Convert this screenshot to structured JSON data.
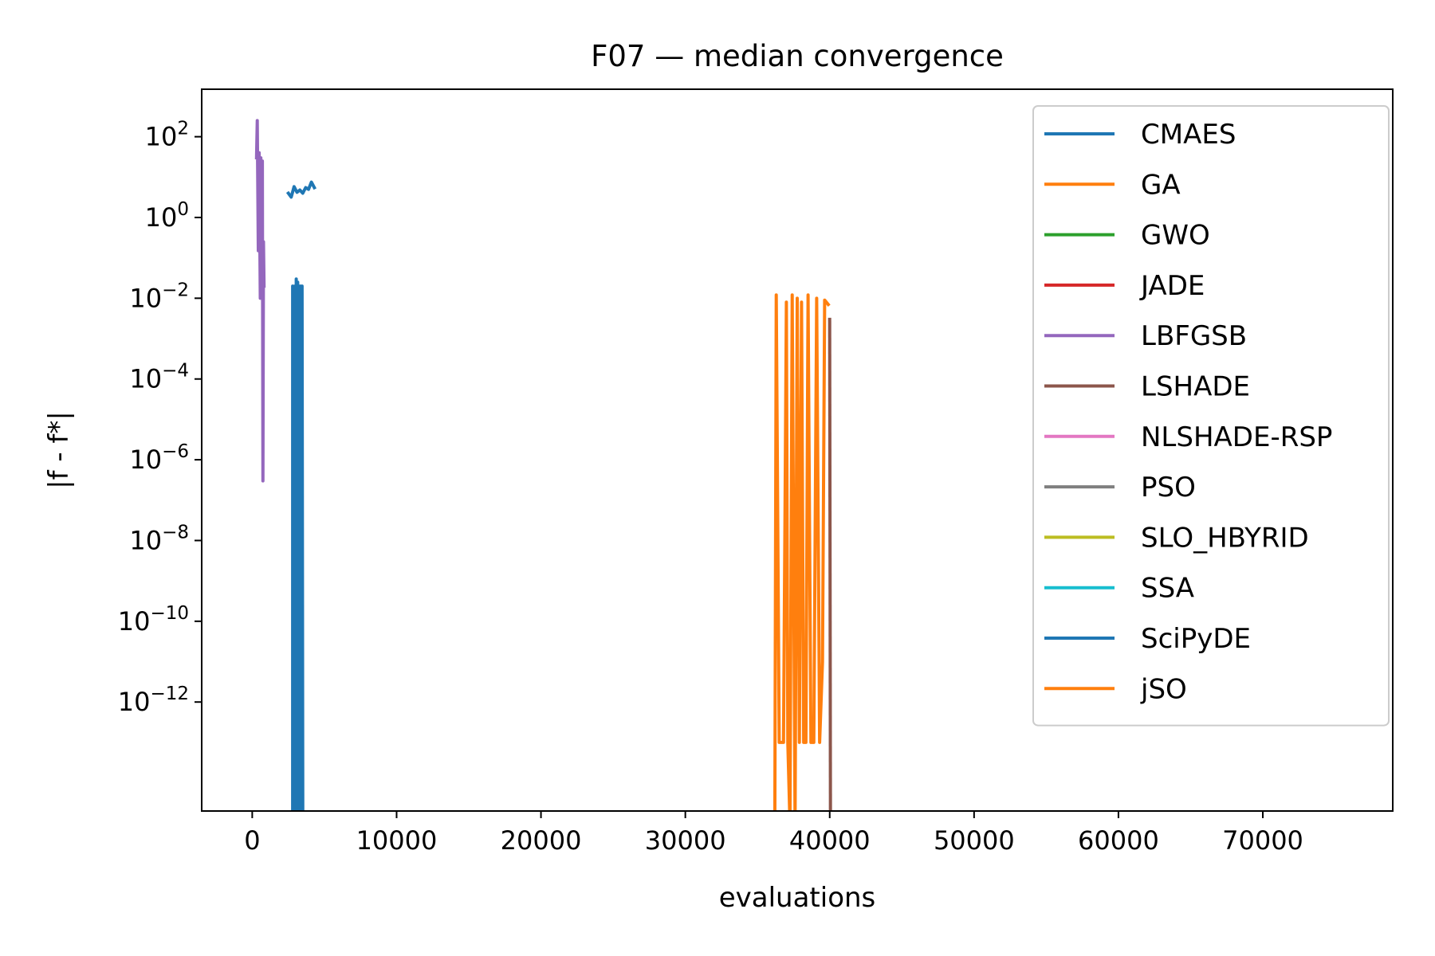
{
  "chart_data": {
    "type": "line",
    "title": "F07 — median convergence",
    "xlabel": "evaluations",
    "ylabel": "|f - f*|",
    "xscale": "linear",
    "yscale": "log",
    "xlim": [
      -3500,
      79000
    ],
    "ylim": [
      2e-15,
      1500
    ],
    "xticks": [
      0,
      10000,
      20000,
      30000,
      40000,
      50000,
      60000,
      70000
    ],
    "xtick_labels": [
      "0",
      "10000",
      "20000",
      "30000",
      "40000",
      "50000",
      "60000",
      "70000"
    ],
    "yticks": [
      {
        "value": 100,
        "base": "10",
        "exp": "2"
      },
      {
        "value": 1,
        "base": "10",
        "exp": "0"
      },
      {
        "value": 0.01,
        "base": "10",
        "exp": "−2"
      },
      {
        "value": 0.0001,
        "base": "10",
        "exp": "−4"
      },
      {
        "value": 1e-06,
        "base": "10",
        "exp": "−6"
      },
      {
        "value": 1e-08,
        "base": "10",
        "exp": "−8"
      },
      {
        "value": 1e-10,
        "base": "10",
        "exp": "−10"
      },
      {
        "value": 1e-12,
        "base": "10",
        "exp": "−12"
      }
    ],
    "grid": false,
    "legend_position": "top-right",
    "series": [
      {
        "name": "CMAES",
        "color": "#1f77b4",
        "width": 4,
        "points": [
          [
            2500,
            4.0
          ],
          [
            2700,
            3.2
          ],
          [
            2900,
            5.8
          ],
          [
            3100,
            4.2
          ],
          [
            3300,
            4.8
          ],
          [
            3500,
            4.0
          ],
          [
            3700,
            5.5
          ],
          [
            3900,
            5.0
          ],
          [
            4100,
            7.5
          ],
          [
            4300,
            5.5
          ]
        ]
      },
      {
        "name": "GA",
        "color": "#ff7f0e",
        "width": 4,
        "points": []
      },
      {
        "name": "GWO",
        "color": "#2ca02c",
        "width": 4,
        "points": []
      },
      {
        "name": "JADE",
        "color": "#d62728",
        "width": 4,
        "points": []
      },
      {
        "name": "LBFGSB",
        "color": "#9467bd",
        "width": 4,
        "points": [
          [
            300,
            30
          ],
          [
            350,
            250
          ],
          [
            420,
            0.15
          ],
          [
            480,
            40
          ],
          [
            520,
            0.5
          ],
          [
            560,
            0.01
          ],
          [
            600,
            30
          ],
          [
            650,
            0.05
          ],
          [
            700,
            25
          ],
          [
            740,
            3e-07
          ],
          [
            780,
            0.25
          ],
          [
            820,
            0.02
          ]
        ]
      },
      {
        "name": "LSHADE",
        "color": "#8c564b",
        "width": 4,
        "points": [
          [
            40000,
            0.003
          ],
          [
            40050,
            1e-15
          ]
        ]
      },
      {
        "name": "NLSHADE-RSP",
        "color": "#e377c2",
        "width": 4,
        "points": []
      },
      {
        "name": "PSO",
        "color": "#7f7f7f",
        "width": 4,
        "points": []
      },
      {
        "name": "SLO_HBYRID",
        "color": "#bcbd22",
        "width": 4,
        "points": []
      },
      {
        "name": "SSA",
        "color": "#17becf",
        "width": 4,
        "points": []
      },
      {
        "name": "SciPyDE",
        "color": "#1f77b4",
        "width": 4,
        "points": [
          [
            2800,
            1e-15
          ],
          [
            2800,
            0.02
          ],
          [
            2900,
            1e-15
          ],
          [
            2950,
            0.02
          ],
          [
            3000,
            1e-15
          ],
          [
            3050,
            0.03
          ],
          [
            3100,
            1e-15
          ],
          [
            3150,
            0.025
          ],
          [
            3200,
            1e-15
          ],
          [
            3250,
            0.02
          ],
          [
            3300,
            1e-15
          ],
          [
            3350,
            0.02
          ],
          [
            3400,
            1e-15
          ],
          [
            3450,
            0.02
          ],
          [
            3500,
            1e-15
          ]
        ]
      },
      {
        "name": "jSO",
        "color": "#ff7f0e",
        "width": 4,
        "points": [
          [
            36200,
            1e-15
          ],
          [
            36300,
            0.012
          ],
          [
            36500,
            1e-13
          ],
          [
            36800,
            1e-13
          ],
          [
            37000,
            0.008
          ],
          [
            37100,
            1e-13
          ],
          [
            37250,
            1e-15
          ],
          [
            37400,
            0.012
          ],
          [
            37600,
            1e-15
          ],
          [
            37750,
            0.01
          ],
          [
            37900,
            1e-13
          ],
          [
            38050,
            0.008
          ],
          [
            38200,
            1e-13
          ],
          [
            38350,
            1e-13
          ],
          [
            38500,
            0.012
          ],
          [
            38700,
            1e-13
          ],
          [
            38900,
            1e-13
          ],
          [
            39100,
            0.01
          ],
          [
            39300,
            1e-13
          ],
          [
            39500,
            1e-11
          ],
          [
            39650,
            0.009
          ],
          [
            39900,
            0.007
          ]
        ]
      }
    ]
  }
}
